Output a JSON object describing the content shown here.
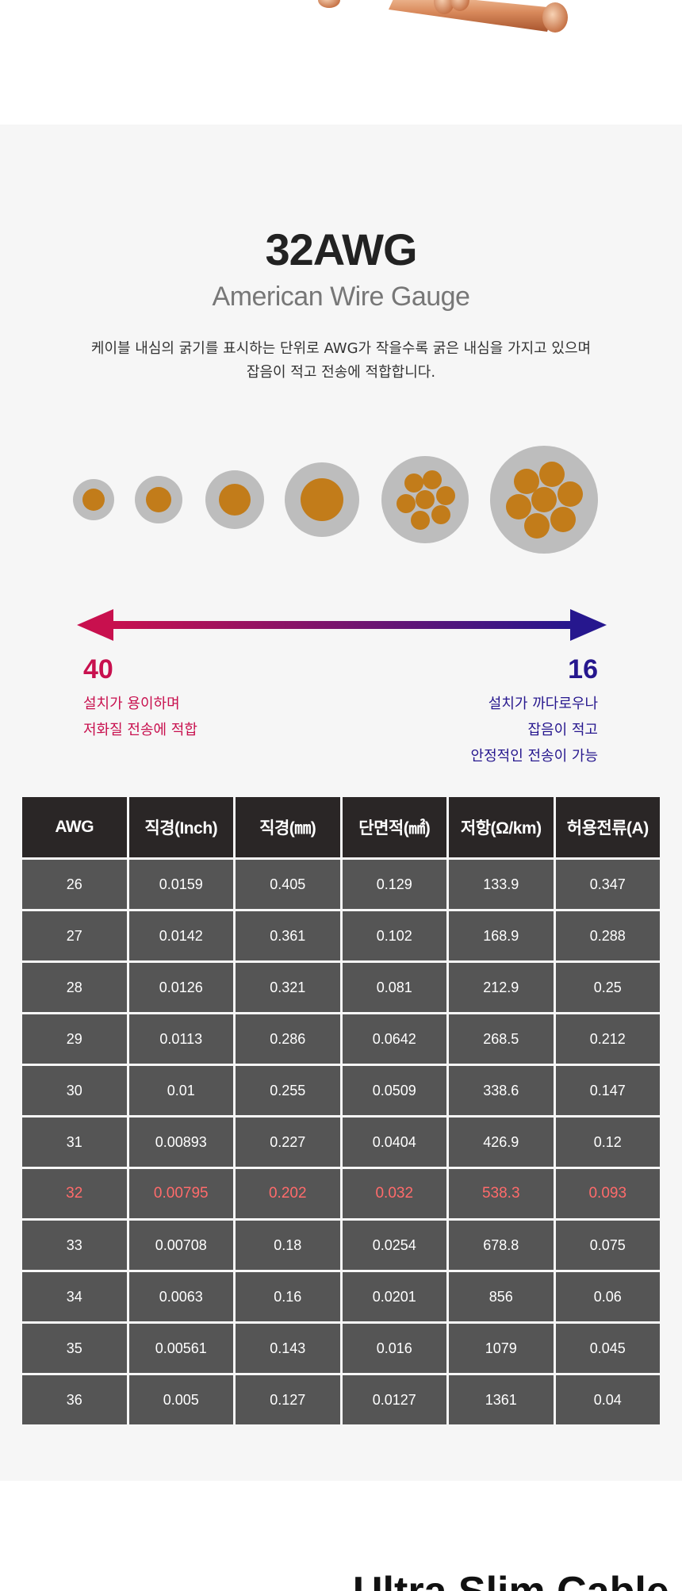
{
  "section": {
    "title": "32AWG",
    "subtitle": "American Wire Gauge",
    "description_line1": "케이블 내심의 굵기를 표시하는 단위로 AWG가 작을수록 굵은 내심을 가지고 있으며",
    "description_line2": "잡음이 적고 전송에 적합합니다."
  },
  "scale": {
    "left_value": "40",
    "left_note_1": "설치가 용이하며",
    "left_note_2": "저화질 전송에 적합",
    "right_value": "16",
    "right_note_1": "설치가 까다로우나",
    "right_note_2": "잡음이 적고",
    "right_note_3": "안정적인 전송이 가능",
    "left_color": "#c8104e",
    "right_color": "#26178e"
  },
  "table": {
    "headers": [
      "AWG",
      "직경(Inch)",
      "직경(㎜)",
      "단면적(㎟)",
      "저항(Ω/km)",
      "허용전류(A)"
    ],
    "highlight_awg": "32",
    "highlight_color": "#ff6b6b",
    "rows": [
      [
        "26",
        "0.0159",
        "0.405",
        "0.129",
        "133.9",
        "0.347"
      ],
      [
        "27",
        "0.0142",
        "0.361",
        "0.102",
        "168.9",
        "0.288"
      ],
      [
        "28",
        "0.0126",
        "0.321",
        "0.081",
        "212.9",
        "0.25"
      ],
      [
        "29",
        "0.0113",
        "0.286",
        "0.0642",
        "268.5",
        "0.212"
      ],
      [
        "30",
        "0.01",
        "0.255",
        "0.0509",
        "338.6",
        "0.147"
      ],
      [
        "31",
        "0.00893",
        "0.227",
        "0.0404",
        "426.9",
        "0.12"
      ],
      [
        "32",
        "0.00795",
        "0.202",
        "0.032",
        "538.3",
        "0.093"
      ],
      [
        "33",
        "0.00708",
        "0.18",
        "0.0254",
        "678.8",
        "0.075"
      ],
      [
        "34",
        "0.0063",
        "0.16",
        "0.0201",
        "856",
        "0.06"
      ],
      [
        "35",
        "0.00561",
        "0.143",
        "0.016",
        "1079",
        "0.045"
      ],
      [
        "36",
        "0.005",
        "0.127",
        "0.0127",
        "1361",
        "0.04"
      ]
    ]
  },
  "next_section_title": "Ultra Slim Cable"
}
